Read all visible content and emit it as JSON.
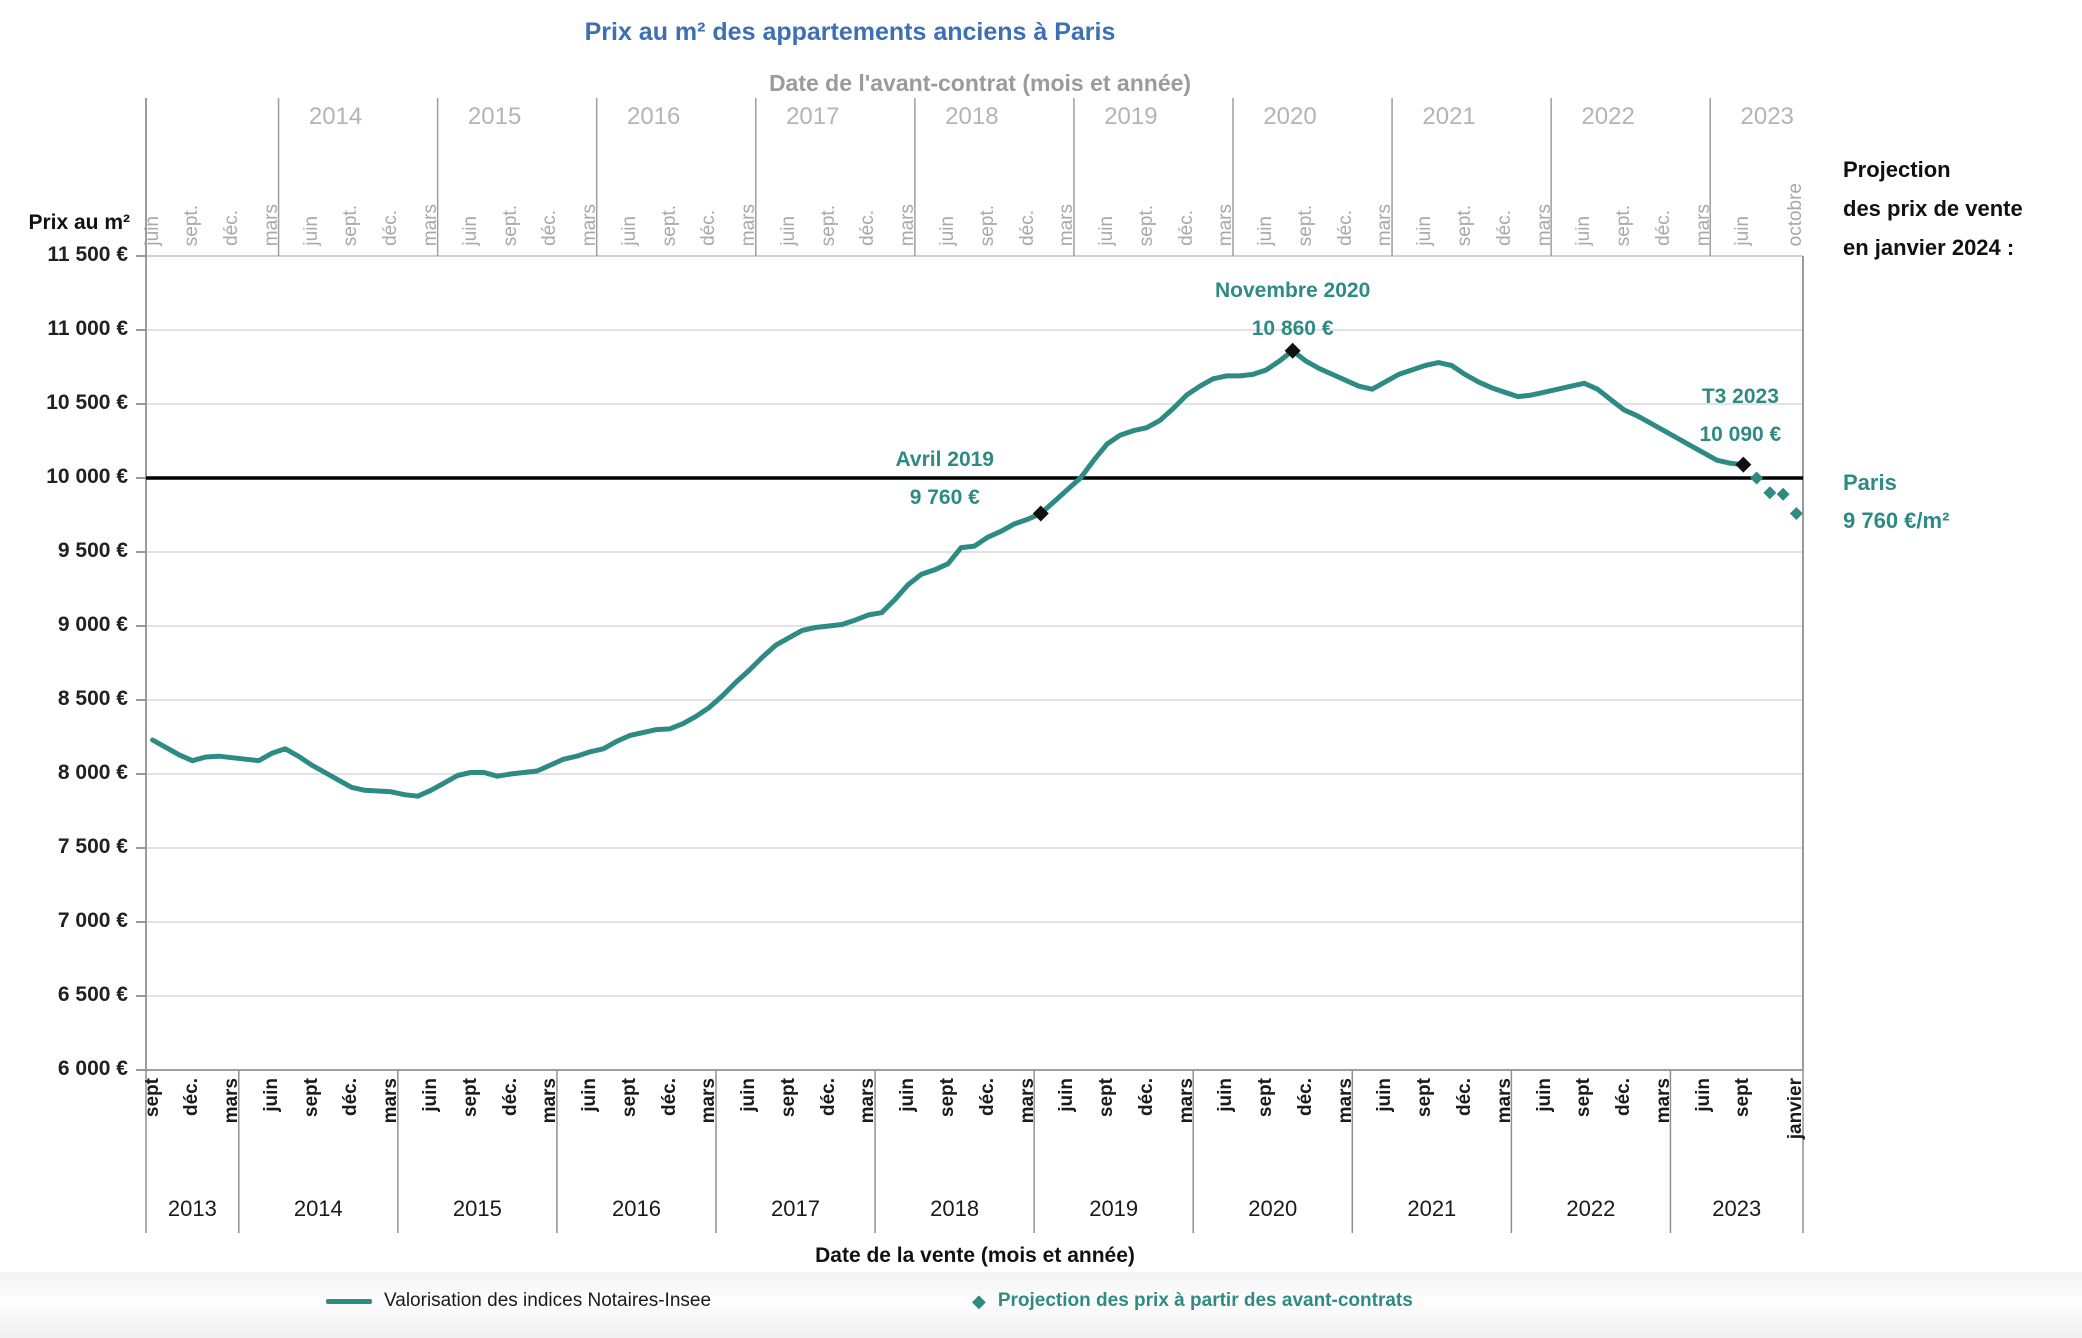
{
  "title": "Prix au m² des appartements  anciens à Paris",
  "top_axis": {
    "title": "Date de l'avant-contrat (mois et année)",
    "years": [
      "2014",
      "2015",
      "2016",
      "2017",
      "2018",
      "2019",
      "2020",
      "2021",
      "2022",
      "2023"
    ],
    "year_boundaries": [
      10,
      22,
      34,
      46,
      58,
      70,
      82,
      94,
      106,
      118
    ],
    "month_labels": [
      "juin",
      "sept.",
      "déc.",
      "mars",
      "juin",
      "sept.",
      "déc.",
      "mars",
      "juin",
      "sept.",
      "déc.",
      "mars",
      "juin",
      "sept.",
      "déc.",
      "mars",
      "juin",
      "sept.",
      "déc.",
      "mars",
      "juin",
      "sept.",
      "déc.",
      "mars",
      "juin",
      "sept.",
      "déc.",
      "mars",
      "juin",
      "sept.",
      "déc.",
      "mars",
      "juin",
      "sept.",
      "déc.",
      "mars",
      "juin",
      "sept.",
      "déc.",
      "mars",
      "juin",
      "octobre"
    ],
    "month_positions": [
      0,
      3,
      6,
      9,
      12,
      15,
      18,
      21,
      24,
      27,
      30,
      33,
      36,
      39,
      42,
      45,
      48,
      51,
      54,
      57,
      60,
      63,
      66,
      69,
      72,
      75,
      78,
      81,
      84,
      87,
      90,
      93,
      96,
      99,
      102,
      105,
      108,
      111,
      114,
      117,
      120,
      124
    ]
  },
  "left_axis": {
    "title": "Prix au m²",
    "tick_labels": [
      "11 500 €",
      "11 000 €",
      "10 500 €",
      "10 000 €",
      "9 500 €",
      "9 000 €",
      "8 500 €",
      "8 000 €",
      "7 500 €",
      "7 000 €",
      "6 500 €",
      "6 000 €"
    ],
    "tick_values": [
      11500,
      11000,
      10500,
      10000,
      9500,
      9000,
      8500,
      8000,
      7500,
      7000,
      6500,
      6000
    ]
  },
  "bottom_axis": {
    "title": "Date de la vente (mois et année)",
    "years": [
      "2013",
      "2014",
      "2015",
      "2016",
      "2017",
      "2018",
      "2019",
      "2020",
      "2021",
      "2022",
      "2023"
    ],
    "year_boundaries": [
      7,
      19,
      31,
      43,
      55,
      67,
      79,
      91,
      103,
      115
    ],
    "month_labels": [
      "sept",
      "déc.",
      "mars",
      "juin",
      "sept",
      "déc.",
      "mars",
      "juin",
      "sept",
      "déc.",
      "mars",
      "juin",
      "sept",
      "déc.",
      "mars",
      "juin",
      "sept",
      "déc.",
      "mars",
      "juin",
      "sept",
      "déc.",
      "mars",
      "juin",
      "sept",
      "déc.",
      "mars",
      "juin",
      "sept",
      "déc.",
      "mars",
      "juin",
      "sept",
      "déc.",
      "mars",
      "juin",
      "sept",
      "déc.",
      "mars",
      "juin",
      "sept",
      "janvier"
    ],
    "month_positions": [
      0,
      3,
      6,
      9,
      12,
      15,
      18,
      21,
      24,
      27,
      30,
      33,
      36,
      39,
      42,
      45,
      48,
      51,
      54,
      57,
      60,
      63,
      66,
      69,
      72,
      75,
      78,
      81,
      84,
      87,
      90,
      93,
      96,
      99,
      102,
      105,
      108,
      111,
      114,
      117,
      120,
      124
    ]
  },
  "side_panel": {
    "line1": "Projection",
    "line2": "des prix de vente",
    "line3": "en janvier 2024 :",
    "city": "Paris",
    "price": "9 760 €/m²"
  },
  "legend": {
    "indices_label": "Valorisation des indices Notaires-Insee",
    "projection_label": "Projection des prix à partir des avant-contrats",
    "projection_marker": "◆"
  },
  "chart_data": {
    "type": "line",
    "title": "Prix au m² des appartements anciens à Paris",
    "xlabel": "Date de la vente (mois et année)",
    "xlabel_secondary": "Date de l'avant-contrat (mois et année)",
    "ylabel": "Prix au m²",
    "ylim": [
      6000,
      11500
    ],
    "ytick_step": 500,
    "n_categories": 125,
    "x_start": "sept 2013",
    "x_end": "janvier 2024",
    "grid": true,
    "legend_position": "bottom",
    "reference_line": 10000,
    "series": [
      {
        "name": "Valorisation des indices Notaires-Insee",
        "style": "solid-line",
        "start_index": 0,
        "values": [
          8230,
          8180,
          8130,
          8090,
          8115,
          8120,
          8110,
          8100,
          8090,
          8140,
          8170,
          8120,
          8060,
          8010,
          7960,
          7910,
          7890,
          7885,
          7880,
          7860,
          7850,
          7890,
          7940,
          7990,
          8010,
          8010,
          7985,
          8000,
          8010,
          8020,
          8060,
          8100,
          8120,
          8150,
          8170,
          8220,
          8260,
          8280,
          8300,
          8305,
          8340,
          8390,
          8450,
          8530,
          8620,
          8700,
          8790,
          8870,
          8920,
          8970,
          8990,
          9000,
          9010,
          9040,
          9075,
          9090,
          9180,
          9280,
          9350,
          9380,
          9420,
          9530,
          9540,
          9600,
          9640,
          9690,
          9720,
          9760,
          9840,
          9920,
          10000,
          10120,
          10230,
          10290,
          10320,
          10340,
          10390,
          10470,
          10560,
          10620,
          10670,
          10690,
          10690,
          10700,
          10730,
          10790,
          10860,
          10790,
          10740,
          10700,
          10660,
          10620,
          10600,
          10650,
          10700,
          10730,
          10760,
          10780,
          10760,
          10700,
          10650,
          10610,
          10580,
          10550,
          10560,
          10580,
          10600,
          10620,
          10640,
          10600,
          10530,
          10460,
          10420,
          10370,
          10320,
          10270,
          10220,
          10170,
          10120,
          10100,
          10090
        ]
      },
      {
        "name": "Projection des prix à partir des avant-contrats",
        "style": "diamond-markers",
        "start_index": 121,
        "values": [
          10000,
          9900,
          9890,
          9760
        ]
      }
    ],
    "annotations": [
      {
        "title": "Avril 2019",
        "value_label": "9 760 €",
        "month_index": 67,
        "value": 9760
      },
      {
        "title": "Novembre 2020",
        "value_label": "10 860 €",
        "month_index": 86,
        "value": 10860
      },
      {
        "title": "T3 2023",
        "value_label": "10 090 €",
        "month_index": 120,
        "value": 10090
      }
    ],
    "colors": {
      "accent_teal": "#2e8b84",
      "title_blue": "#3d6fb5",
      "axis_gray": "#909090",
      "top_label_gray": "#a8a8a8",
      "grid_gray": "#d9d9d9",
      "text_black": "#1a1a1a",
      "marker_black": "#111111"
    }
  }
}
